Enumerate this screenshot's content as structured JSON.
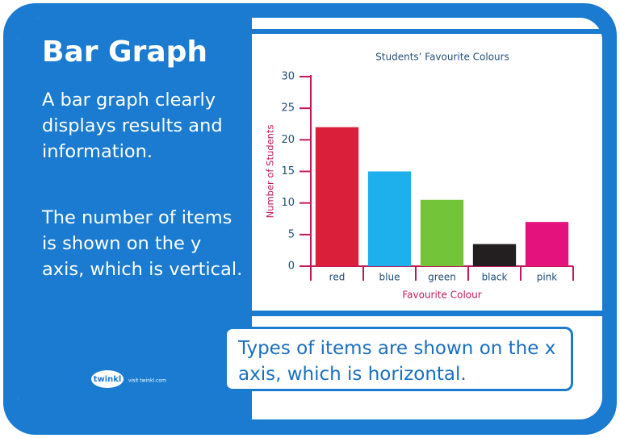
{
  "heading": "Bar Graph",
  "paragraphs": [
    "A bar graph clearly displays results and information.",
    "The number of items is shown on the y axis, which is vertical."
  ],
  "callout": "Types of items are shown on the x axis, which is horizontal.",
  "logo": {
    "brand": "twinkl",
    "link": "visit twinkl.com"
  },
  "chart_data": {
    "type": "bar",
    "title": "Students’ Favourite Colours",
    "x_label": "Favourite Colour",
    "y_label": "Number of Students",
    "categories": [
      "red",
      "blue",
      "green",
      "black",
      "pink"
    ],
    "values": [
      22,
      15,
      10.5,
      3.5,
      7
    ],
    "colors": [
      "#da1f3b",
      "#1eb0ec",
      "#74c43a",
      "#231f20",
      "#e4127c"
    ],
    "axis_color": "#c2185b",
    "ylim": [
      0,
      30
    ],
    "yticks": [
      0,
      5,
      10,
      15,
      20,
      25,
      30
    ]
  }
}
